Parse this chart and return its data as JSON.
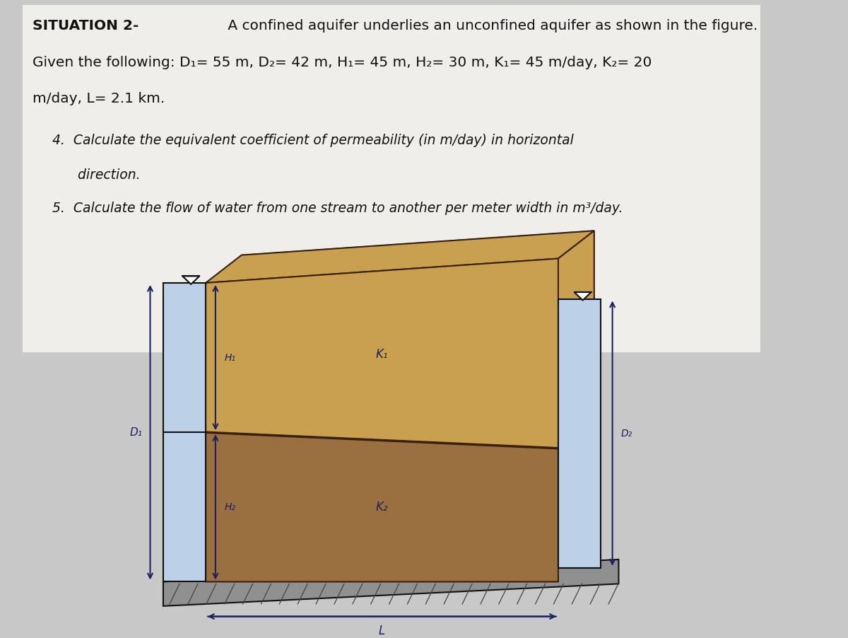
{
  "bg_color": "#c8c8c8",
  "paper_color": "#f0eeea",
  "title_bold": "SITUATION 2-",
  "title_rest": " A confined aquifer underlies an unconfined aquifer as shown in the figure.",
  "line2": "Given the following: D₁= 55 m, D₂= 42 m, H₁= 45 m, H₂= 30 m, K₁= 45 m/day, K₂= 20",
  "line3": "m/day, L= 2.1 km.",
  "q4a": "4.  Calculate the equivalent coefficient of permeability (in m/day) in horizontal",
  "q4b": "      direction.",
  "q5": "5.  Calculate the flow of water from one stream to another per meter width in m³/day.",
  "aquifer_upper_color": "#c8a050",
  "aquifer_lower_color": "#9a7040",
  "aquifer_border_color": "#3a2008",
  "water_color": "#bcd0e8",
  "ground_top_color": "#909090",
  "ground_bot_color": "#606060",
  "dim_color": "#1a2060",
  "black": "#111111",
  "nabla_color": "#111111"
}
